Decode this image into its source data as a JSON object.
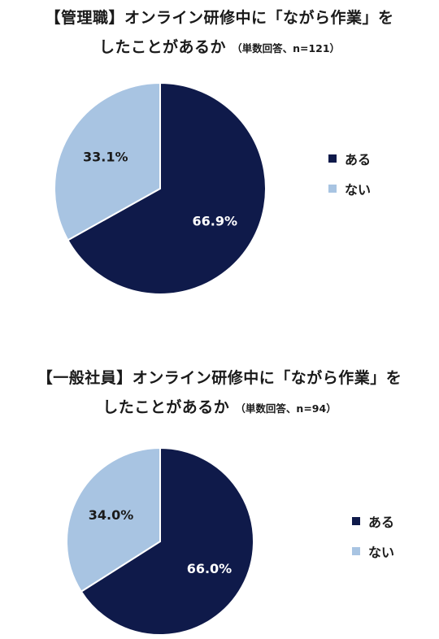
{
  "colors": {
    "aru": "#0f1a4a",
    "nai": "#a8c4e2",
    "label_light": "#ffffff",
    "label_dark": "#1a1a1a"
  },
  "chart_data": [
    {
      "type": "pie",
      "title_line1": "【管理職】オンライン研修中に「ながら作業」を",
      "title_line2": "したことがあるか",
      "subtitle": "（単数回答、n=121）",
      "categories": [
        "ある",
        "ない"
      ],
      "values": [
        66.9,
        33.1
      ],
      "value_labels": [
        "66.9%",
        "33.1%"
      ],
      "legend_position": "right"
    },
    {
      "type": "pie",
      "title_line1": "【一般社員】オンライン研修中に「ながら作業」を",
      "title_line2": "したことがあるか",
      "subtitle": "（単数回答、n=94）",
      "categories": [
        "ある",
        "ない"
      ],
      "values": [
        66.0,
        34.0
      ],
      "value_labels": [
        "66.0%",
        "34.0%"
      ],
      "legend_position": "right"
    }
  ]
}
